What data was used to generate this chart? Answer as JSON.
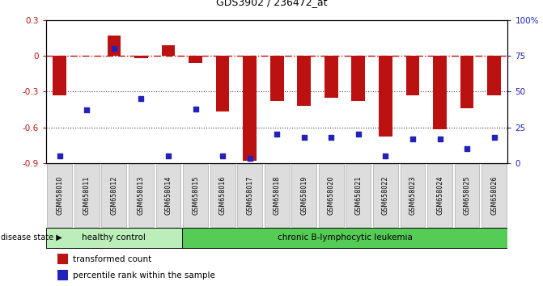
{
  "title": "GDS3902 / 236472_at",
  "samples": [
    "GSM658010",
    "GSM658011",
    "GSM658012",
    "GSM658013",
    "GSM658014",
    "GSM658015",
    "GSM658016",
    "GSM658017",
    "GSM658018",
    "GSM658019",
    "GSM658020",
    "GSM658021",
    "GSM658022",
    "GSM658023",
    "GSM658024",
    "GSM658025",
    "GSM658026"
  ],
  "red_bars": [
    -0.33,
    0.0,
    0.17,
    -0.02,
    0.09,
    -0.06,
    -0.47,
    -0.88,
    -0.38,
    -0.42,
    -0.35,
    -0.38,
    -0.68,
    -0.33,
    -0.62,
    -0.44,
    -0.33
  ],
  "blue_pcts": [
    5,
    37,
    80,
    45,
    5,
    38,
    5,
    3,
    20,
    18,
    18,
    20,
    5,
    17,
    17,
    10,
    18
  ],
  "ylim_left": [
    -0.9,
    0.3
  ],
  "ylim_right": [
    0,
    100
  ],
  "yticks_left": [
    0.3,
    0.0,
    -0.3,
    -0.6,
    -0.9
  ],
  "yticks_right": [
    100,
    75,
    50,
    25,
    0
  ],
  "hline_y": 0.0,
  "dotted_lines": [
    -0.3,
    -0.6
  ],
  "healthy_count": 5,
  "label_healthy": "healthy control",
  "label_leukemia": "chronic B-lymphocytic leukemia",
  "disease_state_label": "disease state",
  "legend_red": "transformed count",
  "legend_blue": "percentile rank within the sample",
  "bar_color": "#BB1111",
  "dot_color": "#2222BB",
  "hline_color": "#BB1111",
  "dotted_color": "#444444",
  "healthy_bg": "#BBEEBB",
  "leukemia_bg": "#55CC55",
  "bar_width": 0.5,
  "tick_label_bg": "#DDDDDD",
  "tick_label_edge": "#999999"
}
